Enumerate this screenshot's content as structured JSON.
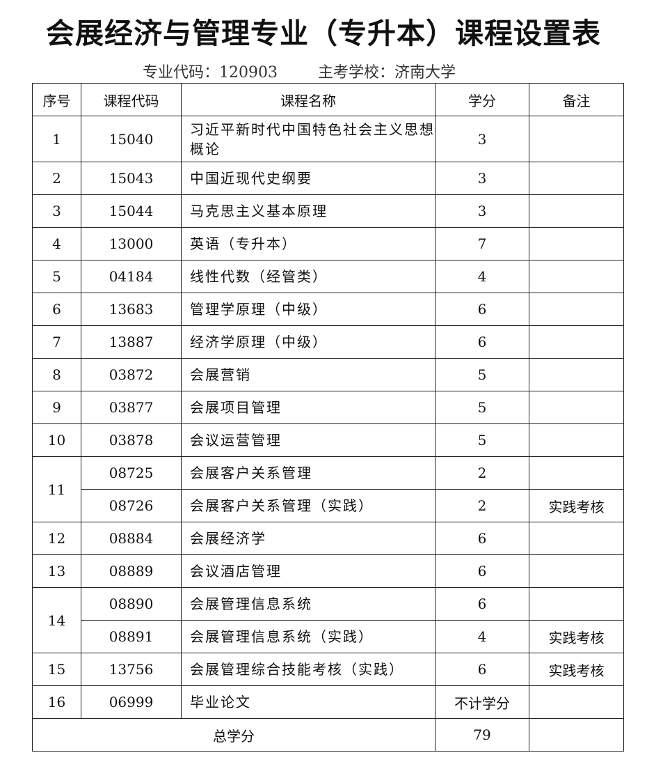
{
  "title": "会展经济与管理专业（专升本）课程设置表",
  "subtitle": {
    "major_code": "专业代码：120903",
    "school": "主考学校：济南大学"
  },
  "headers": [
    "序号",
    "课程代码",
    "课程名称",
    "学分",
    "备注"
  ],
  "rows": [
    {
      "no": "1",
      "courses": [
        {
          "code": "15040",
          "name": "习近平新时代中国特色社会主义思想概论",
          "credit": "3",
          "note": ""
        }
      ]
    },
    {
      "no": "2",
      "courses": [
        {
          "code": "15043",
          "name": "中国近现代史纲要",
          "credit": "3",
          "note": ""
        }
      ]
    },
    {
      "no": "3",
      "courses": [
        {
          "code": "15044",
          "name": "马克思主义基本原理",
          "credit": "3",
          "note": ""
        }
      ]
    },
    {
      "no": "4",
      "courses": [
        {
          "code": "13000",
          "name": "英语（专升本）",
          "credit": "7",
          "note": ""
        }
      ]
    },
    {
      "no": "5",
      "courses": [
        {
          "code": "04184",
          "name": "线性代数（经管类）",
          "credit": "4",
          "note": ""
        }
      ]
    },
    {
      "no": "6",
      "courses": [
        {
          "code": "13683",
          "name": "管理学原理（中级）",
          "credit": "6",
          "note": ""
        }
      ]
    },
    {
      "no": "7",
      "courses": [
        {
          "code": "13887",
          "name": "经济学原理（中级）",
          "credit": "6",
          "note": ""
        }
      ]
    },
    {
      "no": "8",
      "courses": [
        {
          "code": "03872",
          "name": "会展营销",
          "credit": "5",
          "note": ""
        }
      ]
    },
    {
      "no": "9",
      "courses": [
        {
          "code": "03877",
          "name": "会展项目管理",
          "credit": "5",
          "note": ""
        }
      ]
    },
    {
      "no": "10",
      "courses": [
        {
          "code": "03878",
          "name": "会议运营管理",
          "credit": "5",
          "note": ""
        }
      ]
    },
    {
      "no": "11",
      "courses": [
        {
          "code": "08725",
          "name": "会展客户关系管理",
          "credit": "2",
          "note": ""
        },
        {
          "code": "08726",
          "name": "会展客户关系管理（实践）",
          "credit": "2",
          "note": "实践考核"
        }
      ]
    },
    {
      "no": "12",
      "courses": [
        {
          "code": "08884",
          "name": "会展经济学",
          "credit": "6",
          "note": ""
        }
      ]
    },
    {
      "no": "13",
      "courses": [
        {
          "code": "08889",
          "name": "会议酒店管理",
          "credit": "6",
          "note": ""
        }
      ]
    },
    {
      "no": "14",
      "courses": [
        {
          "code": "08890",
          "name": "会展管理信息系统",
          "credit": "6",
          "note": ""
        },
        {
          "code": "08891",
          "name": "会展管理信息系统（实践）",
          "credit": "4",
          "note": "实践考核"
        }
      ]
    },
    {
      "no": "15",
      "courses": [
        {
          "code": "13756",
          "name": "会展管理综合技能考核（实践）",
          "credit": "6",
          "note": "实践考核"
        }
      ]
    },
    {
      "no": "16",
      "courses": [
        {
          "code": "06999",
          "name": "毕业论文",
          "credit": "不计学分",
          "note": ""
        }
      ]
    }
  ],
  "total": {
    "label": "总学分",
    "value": "79"
  }
}
